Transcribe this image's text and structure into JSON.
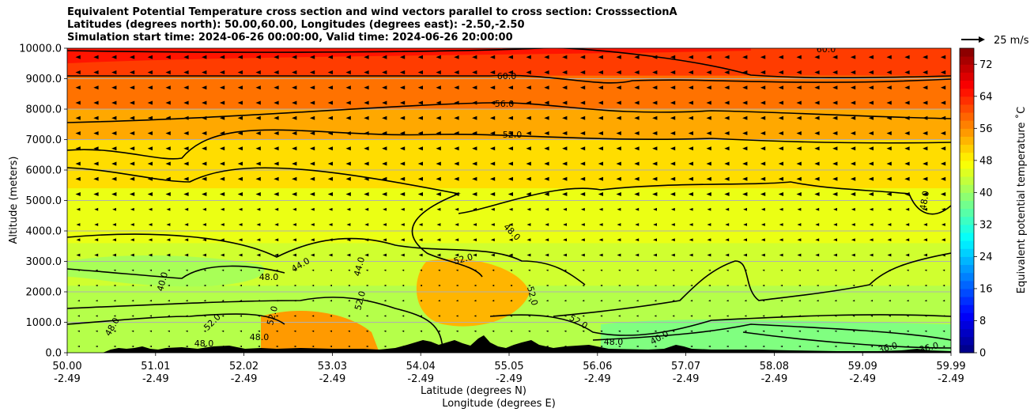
{
  "title_lines": [
    "Equivalent Potential Temperature cross section and wind vectors parallel to cross section: CrosssectionA",
    "Latitudes (degrees north): 50.00,60.00, Longitudes (degrees east): -2.50,-2.50",
    "Simulation start time: 2024-06-26 00:00:00, Valid time: 2024-06-26 20:00:00"
  ],
  "chart_data": {
    "type": "contourf",
    "title": "Equivalent Potential Temperature cross section and wind vectors parallel to cross section: CrosssectionA",
    "ylabel": "Altitude (meters)",
    "xlabel_line1": "Latitude (degrees N)",
    "xlabel_line2": "Longitude (degrees E)",
    "ylim": [
      0,
      10000
    ],
    "xlim": [
      50.0,
      59.99
    ],
    "y_ticks": [
      "0.0",
      "1000.0",
      "2000.0",
      "3000.0",
      "4000.0",
      "5000.0",
      "6000.0",
      "7000.0",
      "8000.0",
      "9000.0",
      "10000.0"
    ],
    "x_ticks": [
      {
        "lat": "50.00",
        "lon": "-2.49"
      },
      {
        "lat": "51.01",
        "lon": "-2.49"
      },
      {
        "lat": "52.02",
        "lon": "-2.49"
      },
      {
        "lat": "53.03",
        "lon": "-2.49"
      },
      {
        "lat": "54.04",
        "lon": "-2.49"
      },
      {
        "lat": "55.05",
        "lon": "-2.49"
      },
      {
        "lat": "56.06",
        "lon": "-2.49"
      },
      {
        "lat": "57.07",
        "lon": "-2.49"
      },
      {
        "lat": "58.08",
        "lon": "-2.49"
      },
      {
        "lat": "59.09",
        "lon": "-2.49"
      },
      {
        "lat": "59.99",
        "lon": "-2.49"
      }
    ],
    "grid": true,
    "colorbar": {
      "label": "Equivalent potential temperature ˚C",
      "range": [
        0,
        76
      ],
      "ticks": [
        "0",
        "8",
        "16",
        "24",
        "32",
        "40",
        "48",
        "56",
        "64",
        "72"
      ]
    },
    "quiver_key": "25 m/s",
    "contour_levels": [
      36,
      40,
      44,
      48,
      52,
      56,
      60
    ],
    "contour_labels": [
      "60.0",
      "56.0",
      "52.0",
      "48.0",
      "44.0",
      "40.0",
      "36.0"
    ],
    "layers_approx": [
      {
        "altitude_m": 500,
        "theta_e": 42
      },
      {
        "altitude_m": 2500,
        "theta_e": 44
      },
      {
        "altitude_m": 5000,
        "theta_e": 46
      },
      {
        "altitude_m": 6500,
        "theta_e": 50
      },
      {
        "altitude_m": 7500,
        "theta_e": 54
      },
      {
        "altitude_m": 8500,
        "theta_e": 58
      },
      {
        "altitude_m": 9500,
        "theta_e": 62
      }
    ]
  }
}
